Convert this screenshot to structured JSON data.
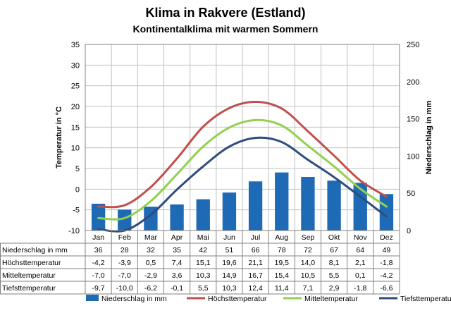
{
  "title": "Klima in Rakvere (Estland)",
  "subtitle": "Kontinentalklima mit warmen Sommern",
  "chart_data": {
    "type": "bar+line",
    "categories": [
      "Jan",
      "Feb",
      "Mar",
      "Apr",
      "Mai",
      "Jun",
      "Jul",
      "Aug",
      "Sep",
      "Okt",
      "Nov",
      "Dez"
    ],
    "ylabel_left": "Temperatur in °C",
    "ylabel_right": "Niederschlag in mm",
    "ylim_left": [
      -10,
      35
    ],
    "ylim_right": [
      0,
      250
    ],
    "yticks_left": [
      "35",
      "30",
      "25",
      "20",
      "15",
      "10",
      "5",
      "0",
      "-5",
      "-10"
    ],
    "yticks_right": [
      "250",
      "200",
      "150",
      "100",
      "50",
      "0"
    ],
    "grid": true,
    "series": [
      {
        "name": "Niederschlag in mm",
        "type": "bar",
        "axis": "right",
        "color": "#1f6ab4",
        "values": [
          36,
          28,
          32,
          35,
          42,
          51,
          66,
          78,
          72,
          67,
          64,
          49
        ],
        "labels": [
          "36",
          "28",
          "32",
          "35",
          "42",
          "51",
          "66",
          "78",
          "72",
          "67",
          "64",
          "49"
        ]
      },
      {
        "name": "Höchsttemperatur",
        "type": "line",
        "axis": "left",
        "color": "#c0504d",
        "values": [
          -4.2,
          -3.9,
          0.5,
          7.4,
          15.1,
          19.6,
          21.1,
          19.5,
          14.0,
          8.1,
          2.1,
          -1.8
        ],
        "labels": [
          "-4,2",
          "-3,9",
          "0,5",
          "7,4",
          "15,1",
          "19,6",
          "21,1",
          "19,5",
          "14,0",
          "8,1",
          "2,1",
          "-1,8"
        ]
      },
      {
        "name": "Mitteltemperatur",
        "type": "line",
        "axis": "left",
        "color": "#92d050",
        "values": [
          -7.0,
          -7.0,
          -2.9,
          3.6,
          10.3,
          14.9,
          16.7,
          15.4,
          10.5,
          5.5,
          0.1,
          -4.2
        ],
        "labels": [
          "-7,0",
          "-7,0",
          "-2,9",
          "3,6",
          "10,3",
          "14,9",
          "16,7",
          "15,4",
          "10,5",
          "5,5",
          "0,1",
          "-4,2"
        ]
      },
      {
        "name": "Tiefsttemperatur",
        "type": "line",
        "axis": "left",
        "color": "#2e4d7b",
        "values": [
          -9.7,
          -10.0,
          -6.2,
          -0.1,
          5.5,
          10.3,
          12.4,
          11.4,
          7.1,
          2.9,
          -1.8,
          -6.6
        ],
        "labels": [
          "-9,7",
          "-10,0",
          "-6,2",
          "-0,1",
          "5,5",
          "10,3",
          "12,4",
          "11,4",
          "7,1",
          "2,9",
          "-1,8",
          "-6,6"
        ]
      }
    ],
    "legend_position": "bottom"
  }
}
